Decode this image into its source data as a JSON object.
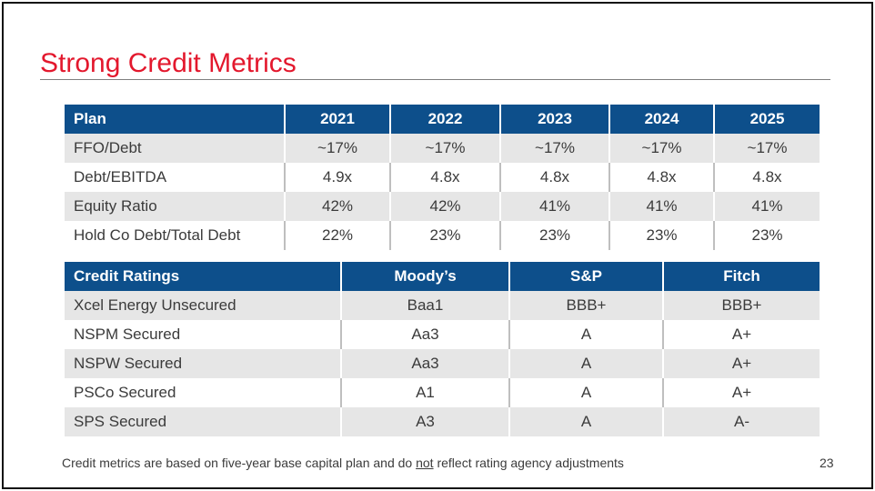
{
  "title": "Strong Credit Metrics",
  "accent_color": "#e3182d",
  "header_color": "#0d4f8b",
  "plan_table": {
    "headers": [
      "Plan",
      "2021",
      "2022",
      "2023",
      "2024",
      "2025"
    ],
    "rows": [
      [
        "FFO/Debt",
        "~17%",
        "~17%",
        "~17%",
        "~17%",
        "~17%"
      ],
      [
        "Debt/EBITDA",
        "4.9x",
        "4.8x",
        "4.8x",
        "4.8x",
        "4.8x"
      ],
      [
        "Equity Ratio",
        "42%",
        "42%",
        "41%",
        "41%",
        "41%"
      ],
      [
        "Hold Co Debt/Total Debt",
        "22%",
        "23%",
        "23%",
        "23%",
        "23%"
      ]
    ]
  },
  "ratings_table": {
    "headers": [
      "Credit Ratings",
      "Moody’s",
      "S&P",
      "Fitch"
    ],
    "rows": [
      [
        "Xcel Energy Unsecured",
        "Baa1",
        "BBB+",
        "BBB+"
      ],
      [
        "NSPM Secured",
        "Aa3",
        "A",
        "A+"
      ],
      [
        "NSPW Secured",
        "Aa3",
        "A",
        "A+"
      ],
      [
        "PSCo Secured",
        "A1",
        "A",
        "A+"
      ],
      [
        "SPS Secured",
        "A3",
        "A",
        "A-"
      ]
    ]
  },
  "footnote": {
    "before": "Credit metrics are based on five-year base capital plan and do ",
    "underlined": "not",
    "after": " reflect rating agency adjustments"
  },
  "page_number": "23"
}
